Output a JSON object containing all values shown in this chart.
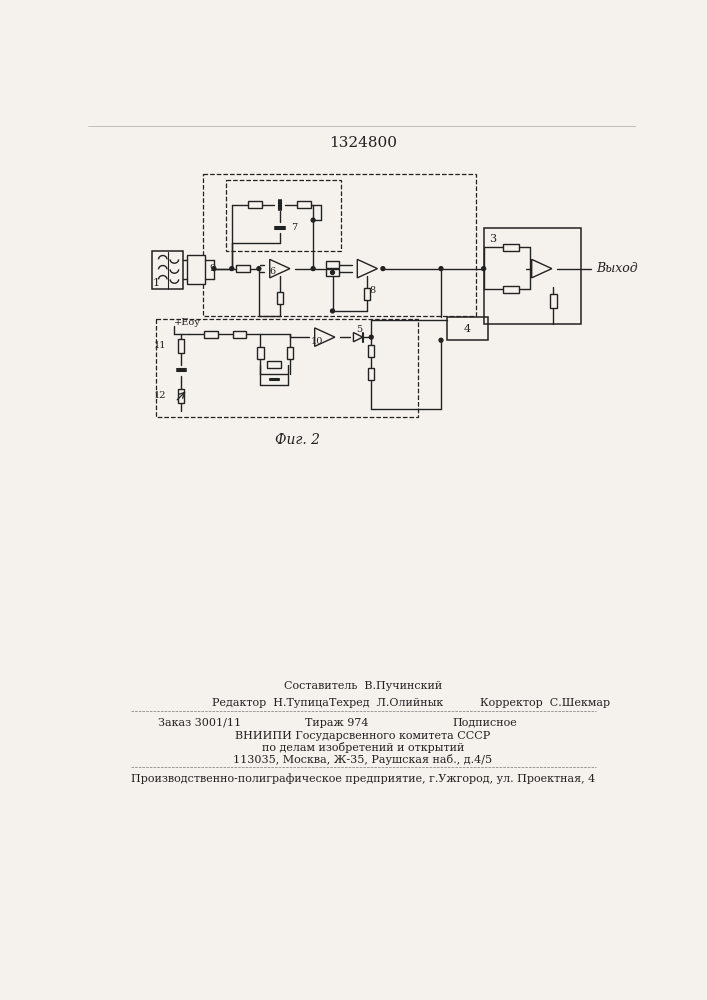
{
  "title": "1324800",
  "fig_label": "Фиг. 2",
  "output_label": "Выход",
  "footer_line1": "Составитель  В.Пучинский",
  "footer_line2_left": "Редактор  Н.Тупица",
  "footer_line2_mid": "Техред  Л.Олийнык",
  "footer_line2_right": "Корректор  С.Шекмар",
  "footer_line3_left": "Заказ 3001/11",
  "footer_line3_mid": "Тираж 974",
  "footer_line3_right": "Подписное",
  "footer_line4": "ВНИИПИ Государсвенного комитета СССР",
  "footer_line5": "по делам изобретений и открытий",
  "footer_line6": "113035, Москва, Ж-35, Раушская наб., д.4/5",
  "footer_line7": "Производственно-полиграфическое предприятие, г.Ужгород, ул. Проектная, 4",
  "bg_color": "#f5f2ed",
  "line_color": "#222222"
}
